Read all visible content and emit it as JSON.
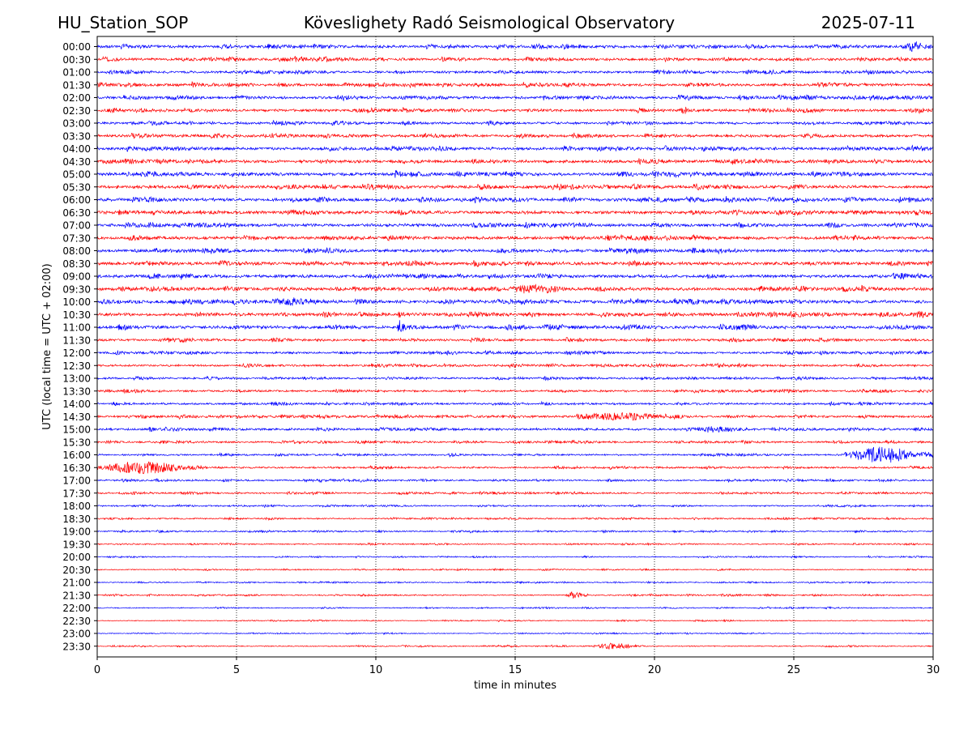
{
  "header": {
    "station": "HU_Station_SOP",
    "title": "Köveslighety Radó Seismological Observatory",
    "date": "2025-07-11"
  },
  "chart_data": {
    "type": "line",
    "title": "Köveslighety Radó Seismological Observatory",
    "xlabel": "time in minutes",
    "ylabel": "UTC (local time = UTC + 02:00)",
    "xlim": [
      0,
      30
    ],
    "xticks": [
      0,
      5,
      10,
      15,
      20,
      25,
      30
    ],
    "grid": "vertical dotted at x ticks",
    "colors": [
      "#0000ff",
      "#ff0000"
    ],
    "row_labels": [
      "00:00",
      "00:30",
      "01:00",
      "01:30",
      "02:00",
      "02:30",
      "03:00",
      "03:30",
      "04:00",
      "04:30",
      "05:00",
      "05:30",
      "06:00",
      "06:30",
      "07:00",
      "07:30",
      "08:00",
      "08:30",
      "09:00",
      "09:30",
      "10:00",
      "10:30",
      "11:00",
      "11:30",
      "12:00",
      "12:30",
      "13:00",
      "13:30",
      "14:00",
      "14:30",
      "15:00",
      "15:30",
      "16:00",
      "16:30",
      "17:00",
      "17:30",
      "18:00",
      "18:30",
      "19:00",
      "19:30",
      "20:00",
      "20:30",
      "21:00",
      "21:30",
      "22:00",
      "22:30",
      "23:00",
      "23:30"
    ],
    "noise_level": [
      0.9,
      0.85,
      0.8,
      0.9,
      0.85,
      0.85,
      0.8,
      0.9,
      0.95,
      1.0,
      1.05,
      1.0,
      1.05,
      1.05,
      1.0,
      1.0,
      1.0,
      1.0,
      1.0,
      1.05,
      1.05,
      1.0,
      1.0,
      0.8,
      0.7,
      0.7,
      0.65,
      0.65,
      0.65,
      0.7,
      0.75,
      0.6,
      0.55,
      0.6,
      0.55,
      0.5,
      0.45,
      0.45,
      0.45,
      0.4,
      0.35,
      0.35,
      0.35,
      0.4,
      0.35,
      0.3,
      0.3,
      0.35
    ],
    "events": [
      {
        "row": "00:00",
        "start": 28.8,
        "end": 30.0,
        "amp": 1.0
      },
      {
        "row": "02:30",
        "start": 20.9,
        "end": 21.3,
        "amp": 1.2
      },
      {
        "row": "09:30",
        "start": 14.8,
        "end": 16.5,
        "amp": 1.2
      },
      {
        "row": "10:00",
        "start": 6.2,
        "end": 8.2,
        "amp": 1.1
      },
      {
        "row": "10:30",
        "start": 29.2,
        "end": 30.0,
        "amp": 1.0
      },
      {
        "row": "11:00",
        "start": 10.7,
        "end": 11.0,
        "amp": 1.4
      },
      {
        "row": "14:30",
        "start": 17.2,
        "end": 21.0,
        "amp": 1.2
      },
      {
        "row": "15:00",
        "start": 21.5,
        "end": 23.3,
        "amp": 1.0
      },
      {
        "row": "16:00",
        "start": 26.8,
        "end": 30.0,
        "amp": 2.8
      },
      {
        "row": "16:30",
        "start": 0.0,
        "end": 4.0,
        "amp": 2.2
      },
      {
        "row": "21:30",
        "start": 16.8,
        "end": 17.6,
        "amp": 1.2
      },
      {
        "row": "23:30",
        "start": 17.8,
        "end": 19.6,
        "amp": 1.0
      }
    ]
  }
}
